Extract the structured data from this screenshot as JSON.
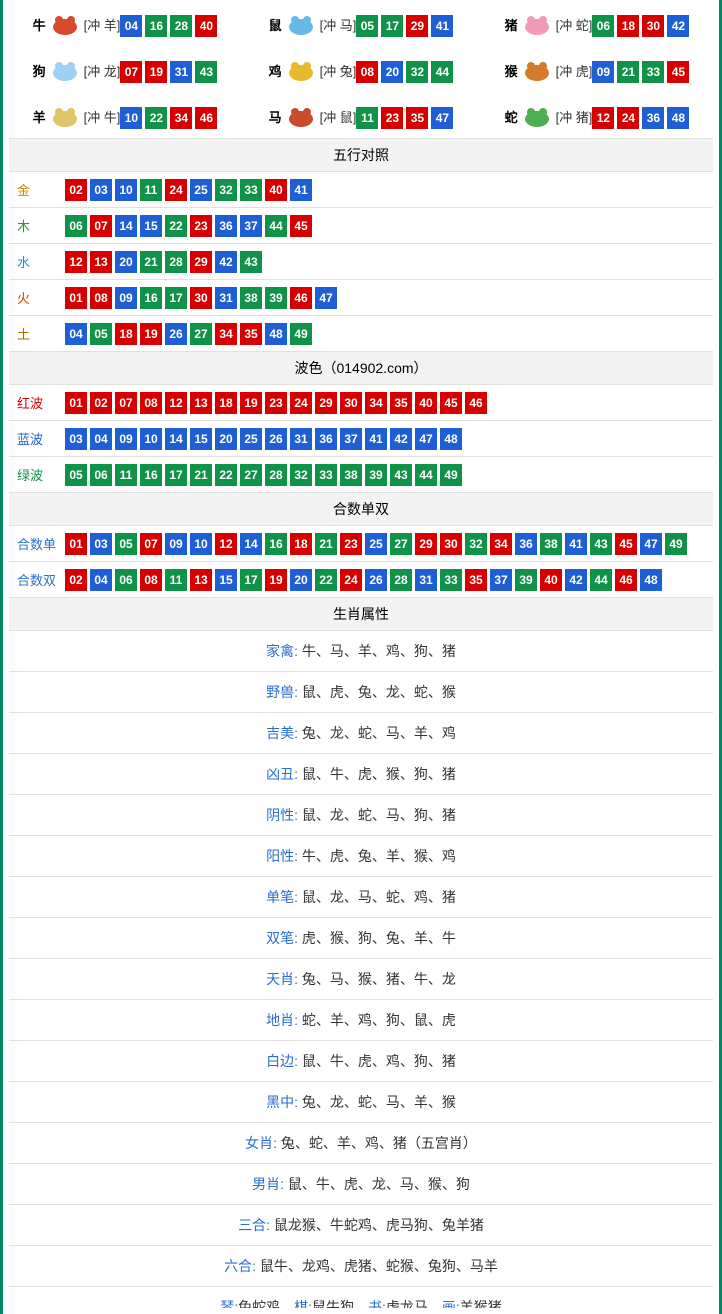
{
  "colors": {
    "red": "#d70000",
    "blue": "#1f5fd4",
    "green": "#109248",
    "border": "#e1e1e1",
    "hdr_bg": "#f3f3f3",
    "text": "#333333",
    "link": "#2b6fcb",
    "gold": "#c18a00",
    "wood": "#2a9a2a",
    "water": "#1f88d8",
    "fire": "#e23b00",
    "earth": "#a86c00",
    "hong": "#d70000",
    "lan": "#1f5fd4",
    "lv": "#109248"
  },
  "color_map": {
    "01": "red",
    "02": "red",
    "07": "red",
    "08": "red",
    "12": "red",
    "13": "red",
    "18": "red",
    "19": "red",
    "23": "red",
    "24": "red",
    "29": "red",
    "30": "red",
    "34": "red",
    "35": "red",
    "40": "red",
    "45": "red",
    "46": "red",
    "03": "blue",
    "04": "blue",
    "09": "blue",
    "10": "blue",
    "14": "blue",
    "15": "blue",
    "20": "blue",
    "25": "blue",
    "26": "blue",
    "31": "blue",
    "36": "blue",
    "37": "blue",
    "41": "blue",
    "42": "blue",
    "47": "blue",
    "48": "blue",
    "05": "green",
    "06": "green",
    "11": "green",
    "16": "green",
    "17": "green",
    "21": "green",
    "22": "green",
    "27": "green",
    "28": "green",
    "32": "green",
    "33": "green",
    "38": "green",
    "39": "green",
    "43": "green",
    "44": "green",
    "49": "green"
  },
  "zodiac": [
    {
      "name": "牛",
      "chong": "[冲 羊]",
      "nums": [
        "04",
        "16",
        "28",
        "40"
      ],
      "icon": "#d84a2e"
    },
    {
      "name": "鼠",
      "chong": "[冲 马]",
      "nums": [
        "05",
        "17",
        "29",
        "41"
      ],
      "icon": "#69b9e7"
    },
    {
      "name": "猪",
      "chong": "[冲 蛇]",
      "nums": [
        "06",
        "18",
        "30",
        "42"
      ],
      "icon": "#f29bb8"
    },
    {
      "name": "狗",
      "chong": "[冲 龙]",
      "nums": [
        "07",
        "19",
        "31",
        "43"
      ],
      "icon": "#9fd1f0"
    },
    {
      "name": "鸡",
      "chong": "[冲 兔]",
      "nums": [
        "08",
        "20",
        "32",
        "44"
      ],
      "icon": "#e7b92e"
    },
    {
      "name": "猴",
      "chong": "[冲 虎]",
      "nums": [
        "09",
        "21",
        "33",
        "45"
      ],
      "icon": "#d37b2b"
    },
    {
      "name": "羊",
      "chong": "[冲 牛]",
      "nums": [
        "10",
        "22",
        "34",
        "46"
      ],
      "icon": "#e0c46a"
    },
    {
      "name": "马",
      "chong": "[冲 鼠]",
      "nums": [
        "11",
        "23",
        "35",
        "47"
      ],
      "icon": "#c94b2e"
    },
    {
      "name": "蛇",
      "chong": "[冲 猪]",
      "nums": [
        "12",
        "24",
        "36",
        "48"
      ],
      "icon": "#4fae4f"
    }
  ],
  "wuxing": {
    "header": "五行对照",
    "rows": [
      {
        "label": "金",
        "color": "gold",
        "nums": [
          "02",
          "03",
          "10",
          "11",
          "24",
          "25",
          "32",
          "33",
          "40",
          "41"
        ]
      },
      {
        "label": "木",
        "color": "wood",
        "nums": [
          "06",
          "07",
          "14",
          "15",
          "22",
          "23",
          "36",
          "37",
          "44",
          "45"
        ]
      },
      {
        "label": "水",
        "color": "water",
        "nums": [
          "12",
          "13",
          "20",
          "21",
          "28",
          "29",
          "42",
          "43"
        ]
      },
      {
        "label": "火",
        "color": "fire",
        "nums": [
          "01",
          "08",
          "09",
          "16",
          "17",
          "30",
          "31",
          "38",
          "39",
          "46",
          "47"
        ]
      },
      {
        "label": "土",
        "color": "earth",
        "nums": [
          "04",
          "05",
          "18",
          "19",
          "26",
          "27",
          "34",
          "35",
          "48",
          "49"
        ]
      }
    ]
  },
  "bose": {
    "header": "波色（014902.com）",
    "rows": [
      {
        "label": "红波",
        "color": "hong",
        "nums": [
          "01",
          "02",
          "07",
          "08",
          "12",
          "13",
          "18",
          "19",
          "23",
          "24",
          "29",
          "30",
          "34",
          "35",
          "40",
          "45",
          "46"
        ]
      },
      {
        "label": "蓝波",
        "color": "lan",
        "nums": [
          "03",
          "04",
          "09",
          "10",
          "14",
          "15",
          "20",
          "25",
          "26",
          "31",
          "36",
          "37",
          "41",
          "42",
          "47",
          "48"
        ]
      },
      {
        "label": "绿波",
        "color": "lv",
        "nums": [
          "05",
          "06",
          "11",
          "16",
          "17",
          "21",
          "22",
          "27",
          "28",
          "32",
          "33",
          "38",
          "39",
          "43",
          "44",
          "49"
        ]
      }
    ]
  },
  "heshu": {
    "header": "合数单双",
    "rows": [
      {
        "label": "合数单",
        "color": "link",
        "nums": [
          "01",
          "03",
          "05",
          "07",
          "09",
          "10",
          "12",
          "14",
          "16",
          "18",
          "21",
          "23",
          "25",
          "27",
          "29",
          "30",
          "32",
          "34",
          "36",
          "38",
          "41",
          "43",
          "45",
          "47",
          "49"
        ]
      },
      {
        "label": "合数双",
        "color": "link",
        "nums": [
          "02",
          "04",
          "06",
          "08",
          "11",
          "13",
          "15",
          "17",
          "19",
          "20",
          "22",
          "24",
          "26",
          "28",
          "31",
          "33",
          "35",
          "37",
          "39",
          "40",
          "42",
          "44",
          "46",
          "48"
        ]
      }
    ]
  },
  "shengxiao": {
    "header": "生肖属性",
    "rows": [
      {
        "label": "家禽: ",
        "value": "牛、马、羊、鸡、狗、猪"
      },
      {
        "label": "野兽: ",
        "value": "鼠、虎、兔、龙、蛇、猴"
      },
      {
        "label": "吉美: ",
        "value": "兔、龙、蛇、马、羊、鸡"
      },
      {
        "label": "凶丑: ",
        "value": "鼠、牛、虎、猴、狗、猪"
      },
      {
        "label": "阴性: ",
        "value": "鼠、龙、蛇、马、狗、猪"
      },
      {
        "label": "阳性: ",
        "value": "牛、虎、兔、羊、猴、鸡"
      },
      {
        "label": "单笔: ",
        "value": "鼠、龙、马、蛇、鸡、猪"
      },
      {
        "label": "双笔: ",
        "value": "虎、猴、狗、兔、羊、牛"
      },
      {
        "label": "天肖: ",
        "value": "兔、马、猴、猪、牛、龙"
      },
      {
        "label": "地肖: ",
        "value": "蛇、羊、鸡、狗、鼠、虎"
      },
      {
        "label": "白边: ",
        "value": "鼠、牛、虎、鸡、狗、猪"
      },
      {
        "label": "黑中: ",
        "value": "兔、龙、蛇、马、羊、猴"
      },
      {
        "label": "女肖: ",
        "value": "兔、蛇、羊、鸡、猪（五宫肖）"
      },
      {
        "label": "男肖: ",
        "value": "鼠、牛、虎、龙、马、猴、狗"
      },
      {
        "label": "三合: ",
        "value": "鼠龙猴、牛蛇鸡、虎马狗、兔羊猪"
      },
      {
        "label": "六合: ",
        "value": "鼠牛、龙鸡、虎猪、蛇猴、兔狗、马羊"
      }
    ]
  },
  "footer_parts": [
    {
      "label": "琴:",
      "value": "兔蛇鸡"
    },
    {
      "label": "棋:",
      "value": "鼠牛狗"
    },
    {
      "label": "书:",
      "value": "虎龙马"
    },
    {
      "label": "画:",
      "value": "羊猴猪"
    }
  ]
}
